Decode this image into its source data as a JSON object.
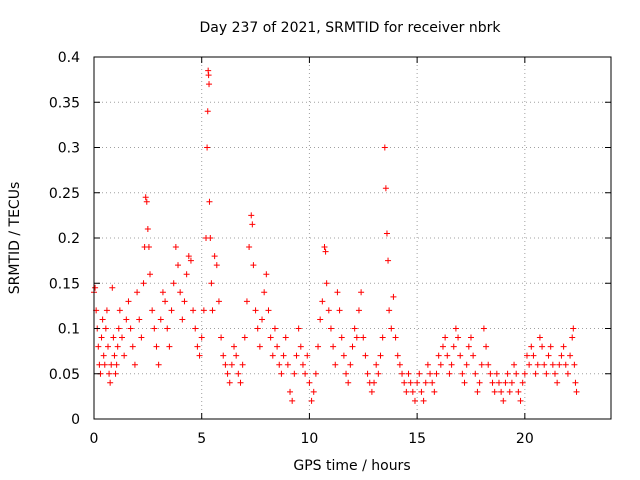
{
  "chart_data": {
    "type": "scatter",
    "title": "Day 237 of 2021, SRMTID for receiver nbrk",
    "xlabel": "GPS time / hours",
    "ylabel": "SRMTID / TECUs",
    "xlim": [
      0,
      24
    ],
    "ylim": [
      0,
      0.4
    ],
    "xticks": [
      0,
      5,
      10,
      15,
      20
    ],
    "xtick_labels": [
      "0",
      "5",
      "10",
      "15",
      "20"
    ],
    "yticks": [
      0,
      0.05,
      0.1,
      0.15,
      0.2,
      0.25,
      0.3,
      0.35,
      0.4
    ],
    "ytick_labels": [
      "0",
      "0.05",
      "0.1",
      "0.15",
      "0.2",
      "0.25",
      "0.3",
      "0.35",
      "0.4"
    ],
    "grid": true,
    "marker": "+",
    "marker_color": "#ff0000",
    "series": [
      {
        "name": "nbrk",
        "points": [
          [
            0.0,
            0.14
          ],
          [
            0.05,
            0.145
          ],
          [
            0.1,
            0.12
          ],
          [
            0.15,
            0.1
          ],
          [
            0.2,
            0.08
          ],
          [
            0.25,
            0.06
          ],
          [
            0.3,
            0.05
          ],
          [
            0.35,
            0.09
          ],
          [
            0.4,
            0.11
          ],
          [
            0.45,
            0.07
          ],
          [
            0.5,
            0.06
          ],
          [
            0.55,
            0.1
          ],
          [
            0.6,
            0.12
          ],
          [
            0.65,
            0.08
          ],
          [
            0.7,
            0.05
          ],
          [
            0.75,
            0.04
          ],
          [
            0.8,
            0.06
          ],
          [
            0.85,
            0.145
          ],
          [
            0.9,
            0.09
          ],
          [
            0.95,
            0.07
          ],
          [
            1.0,
            0.05
          ],
          [
            1.05,
            0.06
          ],
          [
            1.1,
            0.08
          ],
          [
            1.15,
            0.1
          ],
          [
            1.2,
            0.12
          ],
          [
            1.3,
            0.09
          ],
          [
            1.4,
            0.07
          ],
          [
            1.5,
            0.11
          ],
          [
            1.6,
            0.13
          ],
          [
            1.7,
            0.1
          ],
          [
            1.8,
            0.08
          ],
          [
            1.9,
            0.06
          ],
          [
            2.0,
            0.14
          ],
          [
            2.1,
            0.11
          ],
          [
            2.2,
            0.09
          ],
          [
            2.3,
            0.15
          ],
          [
            2.35,
            0.19
          ],
          [
            2.4,
            0.245
          ],
          [
            2.45,
            0.24
          ],
          [
            2.5,
            0.21
          ],
          [
            2.55,
            0.19
          ],
          [
            2.6,
            0.16
          ],
          [
            2.7,
            0.12
          ],
          [
            2.8,
            0.1
          ],
          [
            2.9,
            0.08
          ],
          [
            3.0,
            0.06
          ],
          [
            3.1,
            0.11
          ],
          [
            3.2,
            0.14
          ],
          [
            3.3,
            0.13
          ],
          [
            3.4,
            0.1
          ],
          [
            3.5,
            0.08
          ],
          [
            3.6,
            0.12
          ],
          [
            3.7,
            0.15
          ],
          [
            3.8,
            0.19
          ],
          [
            3.9,
            0.17
          ],
          [
            4.0,
            0.14
          ],
          [
            4.1,
            0.11
          ],
          [
            4.2,
            0.13
          ],
          [
            4.3,
            0.16
          ],
          [
            4.4,
            0.18
          ],
          [
            4.5,
            0.175
          ],
          [
            4.6,
            0.12
          ],
          [
            4.7,
            0.1
          ],
          [
            4.8,
            0.08
          ],
          [
            4.9,
            0.07
          ],
          [
            5.0,
            0.09
          ],
          [
            5.1,
            0.12
          ],
          [
            5.2,
            0.2
          ],
          [
            5.25,
            0.3
          ],
          [
            5.28,
            0.34
          ],
          [
            5.3,
            0.385
          ],
          [
            5.32,
            0.38
          ],
          [
            5.34,
            0.37
          ],
          [
            5.36,
            0.24
          ],
          [
            5.4,
            0.2
          ],
          [
            5.45,
            0.15
          ],
          [
            5.5,
            0.12
          ],
          [
            5.6,
            0.18
          ],
          [
            5.7,
            0.17
          ],
          [
            5.8,
            0.13
          ],
          [
            5.9,
            0.09
          ],
          [
            6.0,
            0.07
          ],
          [
            6.1,
            0.06
          ],
          [
            6.2,
            0.05
          ],
          [
            6.3,
            0.04
          ],
          [
            6.4,
            0.06
          ],
          [
            6.5,
            0.08
          ],
          [
            6.6,
            0.07
          ],
          [
            6.7,
            0.05
          ],
          [
            6.8,
            0.04
          ],
          [
            6.9,
            0.06
          ],
          [
            7.0,
            0.09
          ],
          [
            7.1,
            0.13
          ],
          [
            7.2,
            0.19
          ],
          [
            7.3,
            0.225
          ],
          [
            7.35,
            0.215
          ],
          [
            7.4,
            0.17
          ],
          [
            7.5,
            0.12
          ],
          [
            7.6,
            0.1
          ],
          [
            7.7,
            0.08
          ],
          [
            7.8,
            0.11
          ],
          [
            7.9,
            0.14
          ],
          [
            8.0,
            0.16
          ],
          [
            8.1,
            0.12
          ],
          [
            8.2,
            0.09
          ],
          [
            8.3,
            0.07
          ],
          [
            8.4,
            0.1
          ],
          [
            8.5,
            0.08
          ],
          [
            8.6,
            0.06
          ],
          [
            8.7,
            0.05
          ],
          [
            8.8,
            0.07
          ],
          [
            8.9,
            0.09
          ],
          [
            9.0,
            0.06
          ],
          [
            9.1,
            0.03
          ],
          [
            9.2,
            0.02
          ],
          [
            9.3,
            0.05
          ],
          [
            9.4,
            0.07
          ],
          [
            9.5,
            0.1
          ],
          [
            9.6,
            0.08
          ],
          [
            9.7,
            0.06
          ],
          [
            9.8,
            0.05
          ],
          [
            9.9,
            0.07
          ],
          [
            10.0,
            0.04
          ],
          [
            10.1,
            0.02
          ],
          [
            10.2,
            0.03
          ],
          [
            10.3,
            0.05
          ],
          [
            10.4,
            0.08
          ],
          [
            10.5,
            0.11
          ],
          [
            10.6,
            0.13
          ],
          [
            10.7,
            0.19
          ],
          [
            10.75,
            0.185
          ],
          [
            10.8,
            0.15
          ],
          [
            10.9,
            0.12
          ],
          [
            11.0,
            0.1
          ],
          [
            11.1,
            0.08
          ],
          [
            11.2,
            0.06
          ],
          [
            11.3,
            0.14
          ],
          [
            11.4,
            0.12
          ],
          [
            11.5,
            0.09
          ],
          [
            11.6,
            0.07
          ],
          [
            11.7,
            0.05
          ],
          [
            11.8,
            0.04
          ],
          [
            11.9,
            0.06
          ],
          [
            12.0,
            0.08
          ],
          [
            12.1,
            0.1
          ],
          [
            12.2,
            0.09
          ],
          [
            12.3,
            0.12
          ],
          [
            12.4,
            0.14
          ],
          [
            12.5,
            0.09
          ],
          [
            12.6,
            0.07
          ],
          [
            12.7,
            0.05
          ],
          [
            12.8,
            0.04
          ],
          [
            12.9,
            0.03
          ],
          [
            13.0,
            0.04
          ],
          [
            13.1,
            0.06
          ],
          [
            13.2,
            0.05
          ],
          [
            13.3,
            0.07
          ],
          [
            13.4,
            0.09
          ],
          [
            13.5,
            0.3
          ],
          [
            13.55,
            0.255
          ],
          [
            13.6,
            0.205
          ],
          [
            13.65,
            0.175
          ],
          [
            13.7,
            0.12
          ],
          [
            13.8,
            0.1
          ],
          [
            13.9,
            0.135
          ],
          [
            14.0,
            0.09
          ],
          [
            14.1,
            0.07
          ],
          [
            14.2,
            0.06
          ],
          [
            14.3,
            0.05
          ],
          [
            14.4,
            0.04
          ],
          [
            14.5,
            0.03
          ],
          [
            14.6,
            0.05
          ],
          [
            14.7,
            0.04
          ],
          [
            14.8,
            0.03
          ],
          [
            14.9,
            0.02
          ],
          [
            15.0,
            0.04
          ],
          [
            15.1,
            0.05
          ],
          [
            15.2,
            0.03
          ],
          [
            15.3,
            0.02
          ],
          [
            15.4,
            0.04
          ],
          [
            15.5,
            0.06
          ],
          [
            15.6,
            0.05
          ],
          [
            15.7,
            0.04
          ],
          [
            15.8,
            0.03
          ],
          [
            15.9,
            0.05
          ],
          [
            16.0,
            0.07
          ],
          [
            16.1,
            0.06
          ],
          [
            16.2,
            0.08
          ],
          [
            16.3,
            0.09
          ],
          [
            16.4,
            0.07
          ],
          [
            16.5,
            0.05
          ],
          [
            16.6,
            0.06
          ],
          [
            16.7,
            0.08
          ],
          [
            16.8,
            0.1
          ],
          [
            16.9,
            0.09
          ],
          [
            17.0,
            0.07
          ],
          [
            17.1,
            0.05
          ],
          [
            17.2,
            0.04
          ],
          [
            17.3,
            0.06
          ],
          [
            17.4,
            0.08
          ],
          [
            17.5,
            0.09
          ],
          [
            17.6,
            0.07
          ],
          [
            17.7,
            0.05
          ],
          [
            17.8,
            0.03
          ],
          [
            17.9,
            0.04
          ],
          [
            18.0,
            0.06
          ],
          [
            18.1,
            0.1
          ],
          [
            18.2,
            0.08
          ],
          [
            18.3,
            0.06
          ],
          [
            18.4,
            0.05
          ],
          [
            18.5,
            0.04
          ],
          [
            18.6,
            0.03
          ],
          [
            18.7,
            0.05
          ],
          [
            18.8,
            0.04
          ],
          [
            18.9,
            0.03
          ],
          [
            19.0,
            0.02
          ],
          [
            19.1,
            0.04
          ],
          [
            19.2,
            0.05
          ],
          [
            19.3,
            0.03
          ],
          [
            19.4,
            0.04
          ],
          [
            19.5,
            0.06
          ],
          [
            19.6,
            0.05
          ],
          [
            19.7,
            0.03
          ],
          [
            19.8,
            0.02
          ],
          [
            19.9,
            0.04
          ],
          [
            20.0,
            0.05
          ],
          [
            20.1,
            0.07
          ],
          [
            20.2,
            0.06
          ],
          [
            20.3,
            0.08
          ],
          [
            20.4,
            0.07
          ],
          [
            20.5,
            0.05
          ],
          [
            20.6,
            0.06
          ],
          [
            20.7,
            0.09
          ],
          [
            20.8,
            0.08
          ],
          [
            20.9,
            0.06
          ],
          [
            21.0,
            0.05
          ],
          [
            21.1,
            0.07
          ],
          [
            21.2,
            0.08
          ],
          [
            21.3,
            0.06
          ],
          [
            21.4,
            0.05
          ],
          [
            21.5,
            0.04
          ],
          [
            21.6,
            0.06
          ],
          [
            21.7,
            0.07
          ],
          [
            21.8,
            0.08
          ],
          [
            21.9,
            0.06
          ],
          [
            22.0,
            0.05
          ],
          [
            22.1,
            0.07
          ],
          [
            22.2,
            0.09
          ],
          [
            22.25,
            0.1
          ],
          [
            22.3,
            0.06
          ],
          [
            22.35,
            0.04
          ],
          [
            22.4,
            0.03
          ]
        ]
      }
    ]
  }
}
